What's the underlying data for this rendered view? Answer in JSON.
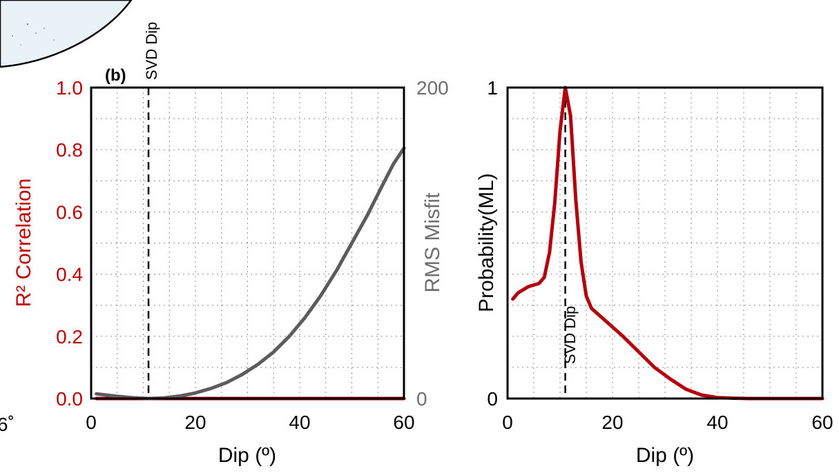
{
  "chart_data": [
    {
      "type": "line",
      "panel_label": "(b)",
      "xlabel": "Dip (º)",
      "ylabel_left": "R² Correlation",
      "ylabel_right": "RMS Misfit",
      "xlim": [
        0,
        60
      ],
      "ylim_left": [
        0.0,
        1.0
      ],
      "ylim_right": [
        0,
        200
      ],
      "x_ticks": [
        "0",
        "20",
        "40",
        "60"
      ],
      "y_left_ticks": [
        "0.0",
        "0.2",
        "0.4",
        "0.6",
        "0.8",
        "1.0"
      ],
      "y_right_ticks": [
        "0",
        "200"
      ],
      "grid": true,
      "marker_line": {
        "x": 11,
        "label": "SVD Dip"
      },
      "colors": {
        "left_axis": "#c00000",
        "right_axis": "#6e6e6e",
        "r2_series": "#b3000c",
        "rms_series": "#5c5c5c"
      },
      "series": [
        {
          "axis": "left",
          "x": [
            1,
            10,
            20,
            30,
            40,
            50,
            60
          ],
          "values": [
            0,
            0,
            0,
            0,
            0,
            0,
            0
          ]
        },
        {
          "axis": "right",
          "x": [
            1,
            3,
            5,
            8,
            11,
            14,
            17,
            20,
            23,
            26,
            29,
            32,
            35,
            38,
            41,
            44,
            47,
            50,
            53,
            56,
            58,
            60
          ],
          "values": [
            3,
            2.2,
            1.4,
            0.5,
            0,
            0.4,
            1.6,
            3.6,
            6.5,
            10.3,
            15.5,
            22,
            30,
            40,
            52,
            66,
            82,
            100,
            118,
            138,
            151,
            161
          ]
        }
      ]
    },
    {
      "type": "line",
      "xlabel": "Dip (º)",
      "ylabel": "Probability(ML)",
      "xlim": [
        0,
        60
      ],
      "ylim": [
        0,
        1
      ],
      "x_ticks": [
        "0",
        "20",
        "40",
        "60"
      ],
      "y_ticks": [
        "0",
        "1"
      ],
      "grid": true,
      "marker_line": {
        "x": 11,
        "label": "SVD Dip"
      },
      "colors": {
        "series": "#b3000c"
      },
      "series": [
        {
          "x": [
            1,
            2,
            4,
            6,
            7,
            8,
            9,
            10,
            11,
            12,
            13,
            14,
            15,
            16,
            18,
            20,
            22,
            25,
            28,
            31,
            34,
            37,
            40,
            43,
            46,
            50,
            55,
            60
          ],
          "values": [
            0.32,
            0.34,
            0.36,
            0.37,
            0.39,
            0.47,
            0.63,
            0.86,
            1.0,
            0.91,
            0.64,
            0.44,
            0.33,
            0.29,
            0.26,
            0.23,
            0.2,
            0.15,
            0.1,
            0.063,
            0.03,
            0.011,
            0.003,
            0.001,
            0,
            0,
            0,
            0
          ]
        }
      ]
    }
  ],
  "inset": {
    "edge_text": "6˚"
  }
}
